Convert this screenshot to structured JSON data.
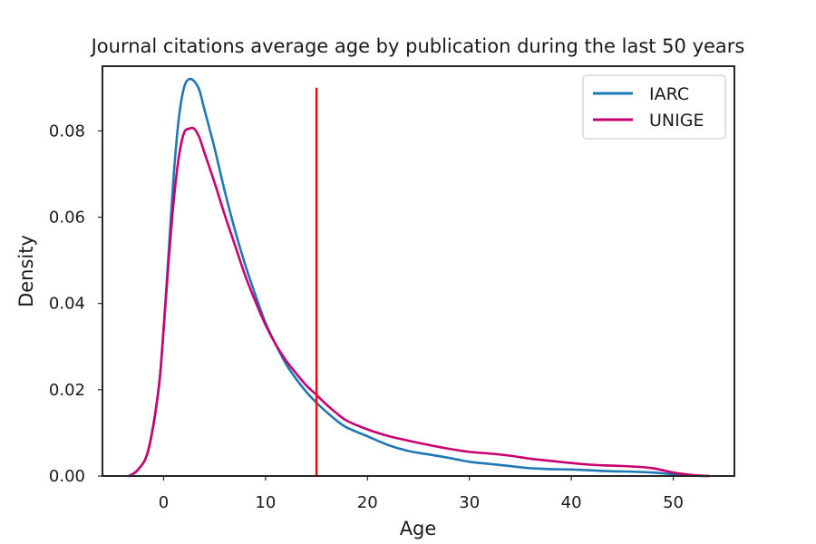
{
  "chart_data": {
    "type": "line",
    "title": "Journal citations average age by publication during the last 50 years",
    "xlabel": "Age",
    "ylabel": "Density",
    "xlim": [
      -6,
      56
    ],
    "ylim": [
      0,
      0.095
    ],
    "xticks": [
      0,
      10,
      20,
      30,
      40,
      50
    ],
    "yticks": [
      0.0,
      0.02,
      0.04,
      0.06,
      0.08
    ],
    "xtick_labels": [
      "0",
      "10",
      "20",
      "30",
      "40",
      "50"
    ],
    "ytick_labels": [
      "0.00",
      "0.02",
      "0.04",
      "0.06",
      "0.08"
    ],
    "grid": false,
    "legend_position": "top-right",
    "series": [
      {
        "name": "IARC",
        "color": "#1f77b4",
        "x": [
          -3.4,
          -2.5,
          -1.5,
          -0.5,
          0,
          0.5,
          1,
          1.5,
          2,
          2.5,
          3,
          3.5,
          4,
          5,
          6,
          7,
          8,
          9,
          10,
          11,
          12,
          13,
          14,
          15,
          16,
          17,
          18,
          20,
          22,
          24,
          26,
          28,
          30,
          32,
          34,
          36,
          38,
          40,
          42,
          44,
          46,
          48,
          50,
          52,
          53.5
        ],
        "y": [
          0.0,
          0.0015,
          0.006,
          0.02,
          0.034,
          0.052,
          0.07,
          0.083,
          0.09,
          0.092,
          0.0915,
          0.0895,
          0.085,
          0.076,
          0.066,
          0.057,
          0.049,
          0.042,
          0.0355,
          0.0305,
          0.026,
          0.0225,
          0.0195,
          0.017,
          0.0148,
          0.0128,
          0.0112,
          0.0092,
          0.0072,
          0.0058,
          0.005,
          0.0042,
          0.0033,
          0.0028,
          0.0023,
          0.0018,
          0.0016,
          0.0015,
          0.0013,
          0.0011,
          0.001,
          0.0008,
          0.0004,
          0.0001,
          0.0
        ]
      },
      {
        "name": "UNIGE",
        "color": "#c80070",
        "x": [
          -3.4,
          -2.5,
          -1.5,
          -0.5,
          0,
          0.5,
          1,
          1.5,
          2,
          2.5,
          3,
          3.5,
          4,
          5,
          6,
          7,
          8,
          9,
          10,
          11,
          12,
          13,
          14,
          15,
          16,
          17,
          18,
          20,
          22,
          24,
          26,
          28,
          30,
          32,
          34,
          36,
          38,
          40,
          42,
          44,
          46,
          48,
          50,
          52,
          53.5
        ],
        "y": [
          0.0,
          0.0015,
          0.006,
          0.02,
          0.034,
          0.05,
          0.064,
          0.074,
          0.0795,
          0.0805,
          0.0805,
          0.0785,
          0.075,
          0.068,
          0.0605,
          0.0535,
          0.0465,
          0.0405,
          0.035,
          0.0305,
          0.0268,
          0.0238,
          0.021,
          0.0188,
          0.0165,
          0.0145,
          0.0128,
          0.0108,
          0.0093,
          0.0082,
          0.0072,
          0.0063,
          0.0056,
          0.0052,
          0.0047,
          0.004,
          0.0035,
          0.003,
          0.0026,
          0.0024,
          0.0022,
          0.0018,
          0.0008,
          0.0002,
          0.0
        ]
      }
    ],
    "annotations": [
      {
        "type": "vline",
        "x": 15,
        "y_range": [
          0,
          0.09
        ],
        "color": "#ff0000"
      }
    ]
  }
}
